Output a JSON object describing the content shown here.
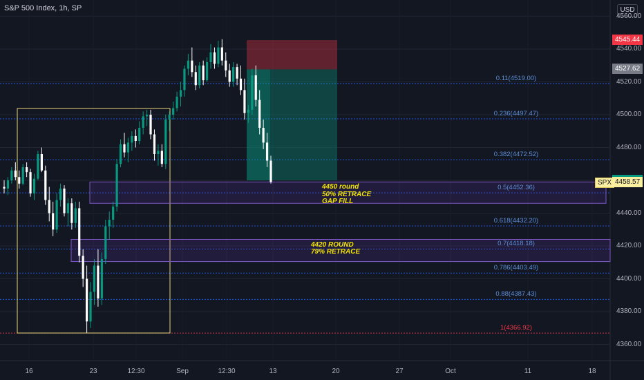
{
  "header": {
    "title": "S&P 500 Index, 1h, SP",
    "currency": "USD"
  },
  "chart_data": {
    "type": "candlestick",
    "title": "S&P 500 Index, 1h, SP",
    "ylim": [
      4352,
      4560
    ],
    "y_ticks": [
      "4560.00",
      "4540.00",
      "4520.00",
      "4500.00",
      "4480.00",
      "4460.00",
      "4440.00",
      "4420.00",
      "4400.00",
      "4380.00",
      "4360.00"
    ],
    "x_ticks": [
      "16",
      "23",
      "12:30",
      "Sep",
      "12:30",
      "13",
      "20",
      "27",
      "Oct",
      "11",
      "18"
    ],
    "price_tags": [
      {
        "label": "4545.44",
        "value": 4545.44,
        "color": "#f23645"
      },
      {
        "label": "4527.62",
        "value": 4527.62,
        "color": "#787b86"
      },
      {
        "label": "4459.97",
        "value": 4459.97,
        "color": "#089981"
      },
      {
        "label": "4458.57",
        "value": 4458.57,
        "color": "#fbf0a0",
        "symbol": "SPX"
      }
    ],
    "fib_levels": [
      {
        "label": "0.11(4519.00)",
        "value": 4519.0
      },
      {
        "label": "0.236(4497.47)",
        "value": 4497.47
      },
      {
        "label": "0.382(4472.52)",
        "value": 4472.52
      },
      {
        "label": "0.5(4452.36)",
        "value": 4452.36
      },
      {
        "label": "0.618(4432.20)",
        "value": 4432.2
      },
      {
        "label": "0.7(4418.18)",
        "value": 4418.18
      },
      {
        "label": "0.786(4403.49)",
        "value": 4403.49
      },
      {
        "label": "0.88(4387.43)",
        "value": 4387.43
      },
      {
        "label": "1(4366.92)",
        "value": 4366.92,
        "color": "#f23645"
      }
    ],
    "zones": [
      {
        "lines": [
          "4450 round",
          "50% RETRACE",
          "GAP FILL"
        ],
        "top": 4459.0,
        "bottom": 4446.0
      },
      {
        "lines": [
          "4420 ROUND",
          "79% RETRACE"
        ],
        "top": 4424.0,
        "bottom": 4410.5
      }
    ],
    "short_position": {
      "stop": 4545.44,
      "entry": 4527.62,
      "target": 4459.97
    },
    "candles": [
      [
        4456,
        4460,
        4452,
        4455
      ],
      [
        4455,
        4462,
        4451,
        4460
      ],
      [
        4460,
        4468,
        4458,
        4466
      ],
      [
        4466,
        4471,
        4460,
        4462
      ],
      [
        4462,
        4466,
        4455,
        4458
      ],
      [
        4458,
        4470,
        4457,
        4468
      ],
      [
        4468,
        4471,
        4462,
        4465
      ],
      [
        4465,
        4467,
        4450,
        4452
      ],
      [
        4452,
        4464,
        4448,
        4461
      ],
      [
        4461,
        4478,
        4460,
        4476
      ],
      [
        4476,
        4480,
        4465,
        4466
      ],
      [
        4466,
        4469,
        4445,
        4448
      ],
      [
        4448,
        4456,
        4435,
        4440
      ],
      [
        4440,
        4447,
        4426,
        4430
      ],
      [
        4430,
        4452,
        4428,
        4448
      ],
      [
        4448,
        4458,
        4444,
        4455
      ],
      [
        4455,
        4457,
        4438,
        4440
      ],
      [
        4440,
        4449,
        4432,
        4446
      ],
      [
        4446,
        4449,
        4430,
        4434
      ],
      [
        4434,
        4447,
        4431,
        4443
      ],
      [
        4443,
        4447,
        4410,
        4414
      ],
      [
        4414,
        4418,
        4395,
        4400
      ],
      [
        4400,
        4408,
        4367,
        4374
      ],
      [
        4374,
        4398,
        4370,
        4392
      ],
      [
        4392,
        4412,
        4384,
        4408
      ],
      [
        4408,
        4418,
        4383,
        4388
      ],
      [
        4388,
        4416,
        4384,
        4412
      ],
      [
        4412,
        4436,
        4409,
        4432
      ],
      [
        4432,
        4441,
        4424,
        4436
      ],
      [
        4436,
        4447,
        4431,
        4444
      ],
      [
        4444,
        4473,
        4441,
        4470
      ],
      [
        4470,
        4485,
        4468,
        4482
      ],
      [
        4482,
        4489,
        4474,
        4477
      ],
      [
        4477,
        4486,
        4471,
        4483
      ],
      [
        4483,
        4490,
        4478,
        4487
      ],
      [
        4487,
        4491,
        4480,
        4484
      ],
      [
        4484,
        4496,
        4482,
        4492
      ],
      [
        4492,
        4502,
        4488,
        4499
      ],
      [
        4499,
        4503,
        4493,
        4500
      ],
      [
        4500,
        4503,
        4485,
        4488
      ],
      [
        4488,
        4491,
        4472,
        4476
      ],
      [
        4476,
        4482,
        4469,
        4478
      ],
      [
        4478,
        4482,
        4468,
        4470
      ],
      [
        4470,
        4500,
        4467,
        4497
      ],
      [
        4497,
        4502,
        4490,
        4500
      ],
      [
        4500,
        4508,
        4497,
        4504
      ],
      [
        4504,
        4514,
        4502,
        4511
      ],
      [
        4511,
        4520,
        4505,
        4515
      ],
      [
        4515,
        4530,
        4511,
        4528
      ],
      [
        4528,
        4537,
        4524,
        4533
      ],
      [
        4533,
        4541,
        4523,
        4526
      ],
      [
        4526,
        4530,
        4515,
        4518
      ],
      [
        4518,
        4532,
        4516,
        4530
      ],
      [
        4530,
        4533,
        4518,
        4521
      ],
      [
        4521,
        4535,
        4520,
        4532
      ],
      [
        4532,
        4543,
        4528,
        4538
      ],
      [
        4538,
        4541,
        4528,
        4531
      ],
      [
        4531,
        4545,
        4529,
        4541
      ],
      [
        4541,
        4546,
        4530,
        4533
      ],
      [
        4533,
        4538,
        4523,
        4527
      ],
      [
        4527,
        4531,
        4517,
        4520
      ],
      [
        4520,
        4532,
        4517,
        4529
      ],
      [
        4529,
        4531,
        4518,
        4522
      ],
      [
        4522,
        4530,
        4512,
        4515
      ],
      [
        4515,
        4522,
        4497,
        4501
      ],
      [
        4501,
        4506,
        4495,
        4503
      ],
      [
        4503,
        4528,
        4500,
        4524
      ],
      [
        4524,
        4530,
        4505,
        4509
      ],
      [
        4509,
        4515,
        4488,
        4492
      ],
      [
        4492,
        4497,
        4479,
        4483
      ],
      [
        4483,
        4489,
        4468,
        4472
      ],
      [
        4472,
        4475,
        4458,
        4459
      ]
    ]
  }
}
